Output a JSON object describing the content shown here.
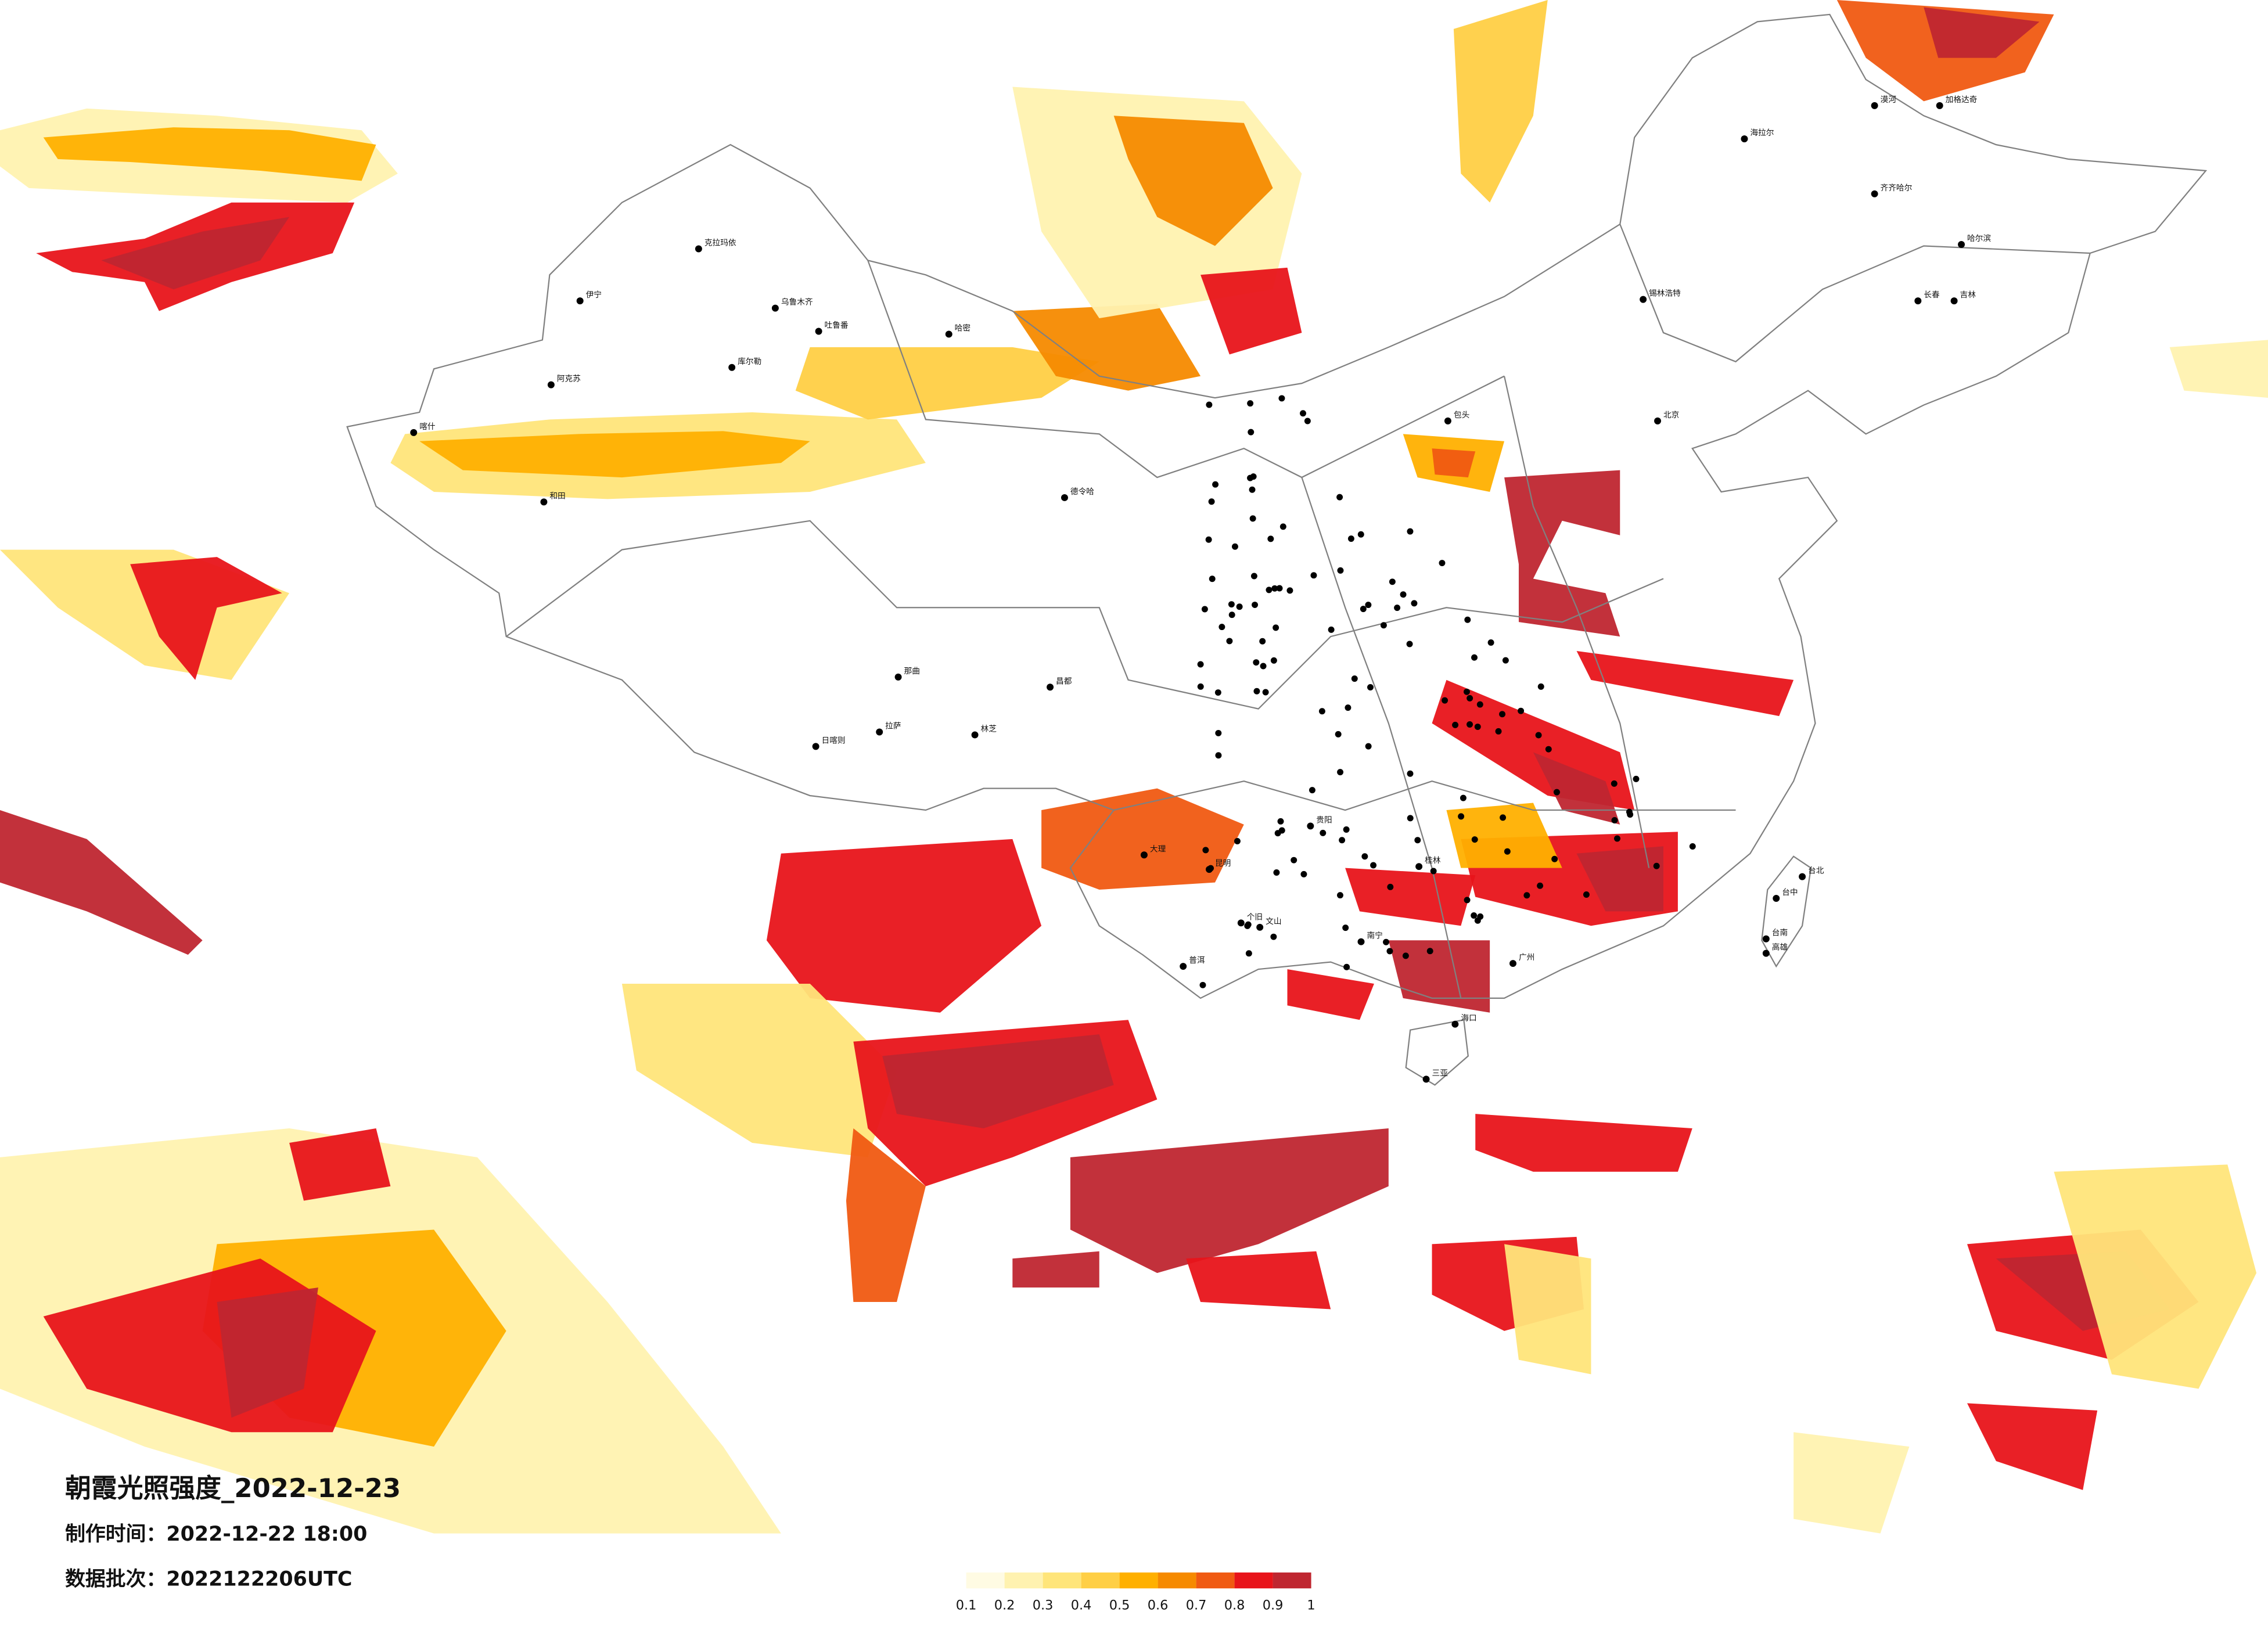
{
  "header": {
    "title": "朝霞光照强度_2022-12-23",
    "made_time": "制作时间：2022-12-22 18:00",
    "batch": "数据批次：2022122206UTC"
  },
  "legend": {
    "ticks": [
      0.1,
      0.2,
      0.3,
      0.4,
      0.5,
      0.6,
      0.7,
      0.8,
      0.9,
      1
    ],
    "colors": [
      "#fffbe3",
      "#fff2b0",
      "#ffe57a",
      "#ffcf45",
      "#ffb000",
      "#f68a00",
      "#f05a12",
      "#e8141a",
      "#bf2630"
    ]
  },
  "cities": [
    "漠河",
    "加格达奇",
    "海拉尔",
    "齐齐哈尔",
    "哈尔滨",
    "长春",
    "吉林",
    "锡林浩特",
    "克拉玛依",
    "伊宁",
    "乌鲁木齐",
    "吐鲁番",
    "哈密",
    "库尔勒",
    "阿克苏",
    "喀什",
    "和田",
    "德令哈",
    "那曲",
    "日喀则",
    "拉萨",
    "林芝",
    "昌都",
    "大理",
    "昆明",
    "个旧",
    "文山",
    "普洱",
    "贵阳",
    "桂林",
    "南宁",
    "广州",
    "海口",
    "三亚",
    "台北",
    "台中",
    "台南",
    "高雄",
    "北京",
    "包头"
  ]
}
